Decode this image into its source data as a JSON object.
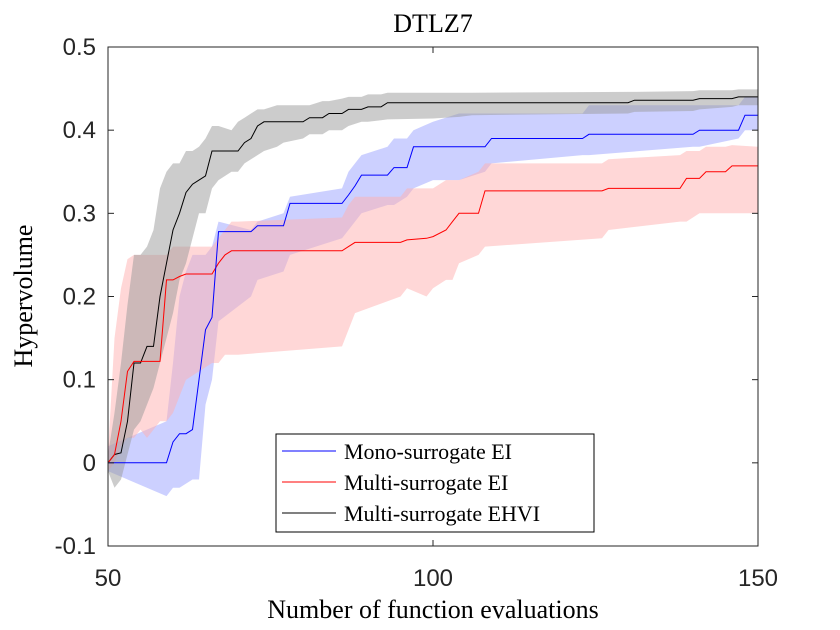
{
  "chart_data": {
    "type": "line",
    "title": "DTLZ7",
    "xlabel": "Number of function evaluations",
    "ylabel": "Hypervolume",
    "xlim": [
      50,
      150
    ],
    "ylim": [
      -0.1,
      0.5
    ],
    "xticks": [
      50,
      100,
      150
    ],
    "xtick_labels": [
      "50",
      "100",
      "150"
    ],
    "yticks": [
      -0.1,
      0,
      0.1,
      0.2,
      0.3,
      0.4,
      0.5
    ],
    "ytick_labels": [
      "-0.1",
      "0",
      "0.1",
      "0.2",
      "0.3",
      "0.4",
      "0.5"
    ],
    "grid": false,
    "legend_position": "bottom-center",
    "series": [
      {
        "name": "Mono-surrogate EI",
        "color": "#0000ff",
        "band_color": "#9aa2ff",
        "x": [
          50,
          59,
          60,
          61,
          62,
          63,
          64,
          65,
          66,
          67,
          72,
          73,
          77,
          78,
          86,
          87,
          88,
          89,
          93,
          94,
          96,
          97,
          100,
          104,
          108,
          109,
          123,
          124,
          140,
          141,
          147,
          148,
          150
        ],
        "y": [
          0,
          0,
          0.025,
          0.035,
          0.035,
          0.04,
          0.1,
          0.16,
          0.175,
          0.278,
          0.278,
          0.285,
          0.285,
          0.312,
          0.312,
          0.322,
          0.333,
          0.346,
          0.346,
          0.355,
          0.355,
          0.38,
          0.38,
          0.38,
          0.38,
          0.39,
          0.39,
          0.395,
          0.395,
          0.4,
          0.4,
          0.418,
          0.418
        ],
        "upper": [
          0.02,
          0.05,
          0.12,
          0.2,
          0.23,
          0.25,
          0.25,
          0.25,
          0.26,
          0.29,
          0.28,
          0.29,
          0.3,
          0.32,
          0.33,
          0.35,
          0.36,
          0.37,
          0.38,
          0.39,
          0.39,
          0.4,
          0.41,
          0.42,
          0.42,
          0.42,
          0.42,
          0.43,
          0.43,
          0.43,
          0.43,
          0.44,
          0.44
        ],
        "lower": [
          -0.01,
          -0.04,
          -0.03,
          -0.03,
          -0.025,
          -0.02,
          -0.02,
          0.07,
          0.1,
          0.17,
          0.2,
          0.22,
          0.23,
          0.25,
          0.27,
          0.28,
          0.29,
          0.3,
          0.31,
          0.31,
          0.32,
          0.33,
          0.34,
          0.34,
          0.35,
          0.36,
          0.37,
          0.37,
          0.38,
          0.38,
          0.39,
          0.4,
          0.4
        ]
      },
      {
        "name": "Multi-surrogate EI",
        "color": "#ff0000",
        "band_color": "#ffb0b0",
        "x": [
          50,
          51,
          52,
          53,
          54,
          55,
          56,
          57,
          58,
          59,
          60,
          61,
          62,
          66,
          67,
          68,
          69,
          70,
          86,
          87,
          88,
          95,
          96,
          99,
          100,
          102,
          103,
          104,
          107,
          108,
          126,
          127,
          138,
          139,
          141,
          142,
          145,
          146,
          150
        ],
        "y": [
          0,
          0.01,
          0.05,
          0.11,
          0.122,
          0.122,
          0.122,
          0.122,
          0.122,
          0.22,
          0.22,
          0.224,
          0.227,
          0.227,
          0.24,
          0.25,
          0.255,
          0.255,
          0.255,
          0.26,
          0.265,
          0.265,
          0.268,
          0.27,
          0.272,
          0.28,
          0.29,
          0.3,
          0.3,
          0.327,
          0.327,
          0.33,
          0.33,
          0.342,
          0.342,
          0.35,
          0.35,
          0.357,
          0.357
        ],
        "upper": [
          0.01,
          0.15,
          0.21,
          0.245,
          0.25,
          0.25,
          0.25,
          0.25,
          0.25,
          0.25,
          0.26,
          0.26,
          0.26,
          0.26,
          0.27,
          0.28,
          0.29,
          0.29,
          0.295,
          0.31,
          0.32,
          0.32,
          0.33,
          0.33,
          0.33,
          0.34,
          0.34,
          0.34,
          0.35,
          0.36,
          0.36,
          0.365,
          0.37,
          0.375,
          0.375,
          0.38,
          0.38,
          0.382,
          0.38
        ],
        "lower": [
          -0.01,
          0,
          0.02,
          0.03,
          0.03,
          0.04,
          0.03,
          0.04,
          0.05,
          0.05,
          0.06,
          0.08,
          0.1,
          0.12,
          0.12,
          0.13,
          0.13,
          0.13,
          0.14,
          0.16,
          0.18,
          0.2,
          0.21,
          0.2,
          0.21,
          0.22,
          0.22,
          0.24,
          0.25,
          0.26,
          0.27,
          0.28,
          0.29,
          0.29,
          0.3,
          0.3,
          0.3,
          0.3,
          0.3
        ]
      },
      {
        "name": "Multi-surrogate EHVI",
        "color": "#000000",
        "band_color": "#9a9a9a",
        "x": [
          50,
          51,
          52,
          53,
          54,
          55,
          56,
          57,
          58,
          59,
          60,
          61,
          62,
          63,
          64,
          65,
          66,
          67,
          69,
          70,
          71,
          72,
          73,
          74,
          76,
          77,
          80,
          81,
          83,
          84,
          86,
          87,
          89,
          90,
          92,
          93,
          100,
          104,
          106,
          130,
          131,
          140,
          141,
          146,
          147,
          150
        ],
        "y": [
          0,
          0.01,
          0.012,
          0.05,
          0.12,
          0.12,
          0.14,
          0.14,
          0.2,
          0.24,
          0.28,
          0.3,
          0.325,
          0.335,
          0.34,
          0.345,
          0.375,
          0.375,
          0.375,
          0.375,
          0.385,
          0.39,
          0.405,
          0.41,
          0.41,
          0.41,
          0.41,
          0.415,
          0.415,
          0.42,
          0.42,
          0.425,
          0.425,
          0.428,
          0.428,
          0.433,
          0.433,
          0.433,
          0.433,
          0.433,
          0.436,
          0.436,
          0.438,
          0.438,
          0.44,
          0.44
        ],
        "upper": [
          0.01,
          0.06,
          0.12,
          0.19,
          0.25,
          0.25,
          0.26,
          0.28,
          0.33,
          0.35,
          0.36,
          0.36,
          0.375,
          0.375,
          0.38,
          0.39,
          0.405,
          0.405,
          0.4,
          0.41,
          0.415,
          0.42,
          0.425,
          0.425,
          0.43,
          0.43,
          0.43,
          0.43,
          0.435,
          0.435,
          0.438,
          0.44,
          0.44,
          0.443,
          0.443,
          0.445,
          0.445,
          0.445,
          0.445,
          0.446,
          0.446,
          0.447,
          0.448,
          0.448,
          0.449,
          0.449
        ],
        "lower": [
          -0.01,
          -0.03,
          -0.02,
          0.01,
          0.04,
          0.05,
          0.07,
          0.09,
          0.12,
          0.15,
          0.18,
          0.22,
          0.24,
          0.27,
          0.3,
          0.3,
          0.33,
          0.34,
          0.35,
          0.35,
          0.36,
          0.365,
          0.37,
          0.375,
          0.38,
          0.385,
          0.39,
          0.395,
          0.395,
          0.4,
          0.4,
          0.405,
          0.41,
          0.41,
          0.412,
          0.413,
          0.414,
          0.416,
          0.418,
          0.42,
          0.422,
          0.423,
          0.425,
          0.428,
          0.43,
          0.43
        ]
      }
    ]
  }
}
